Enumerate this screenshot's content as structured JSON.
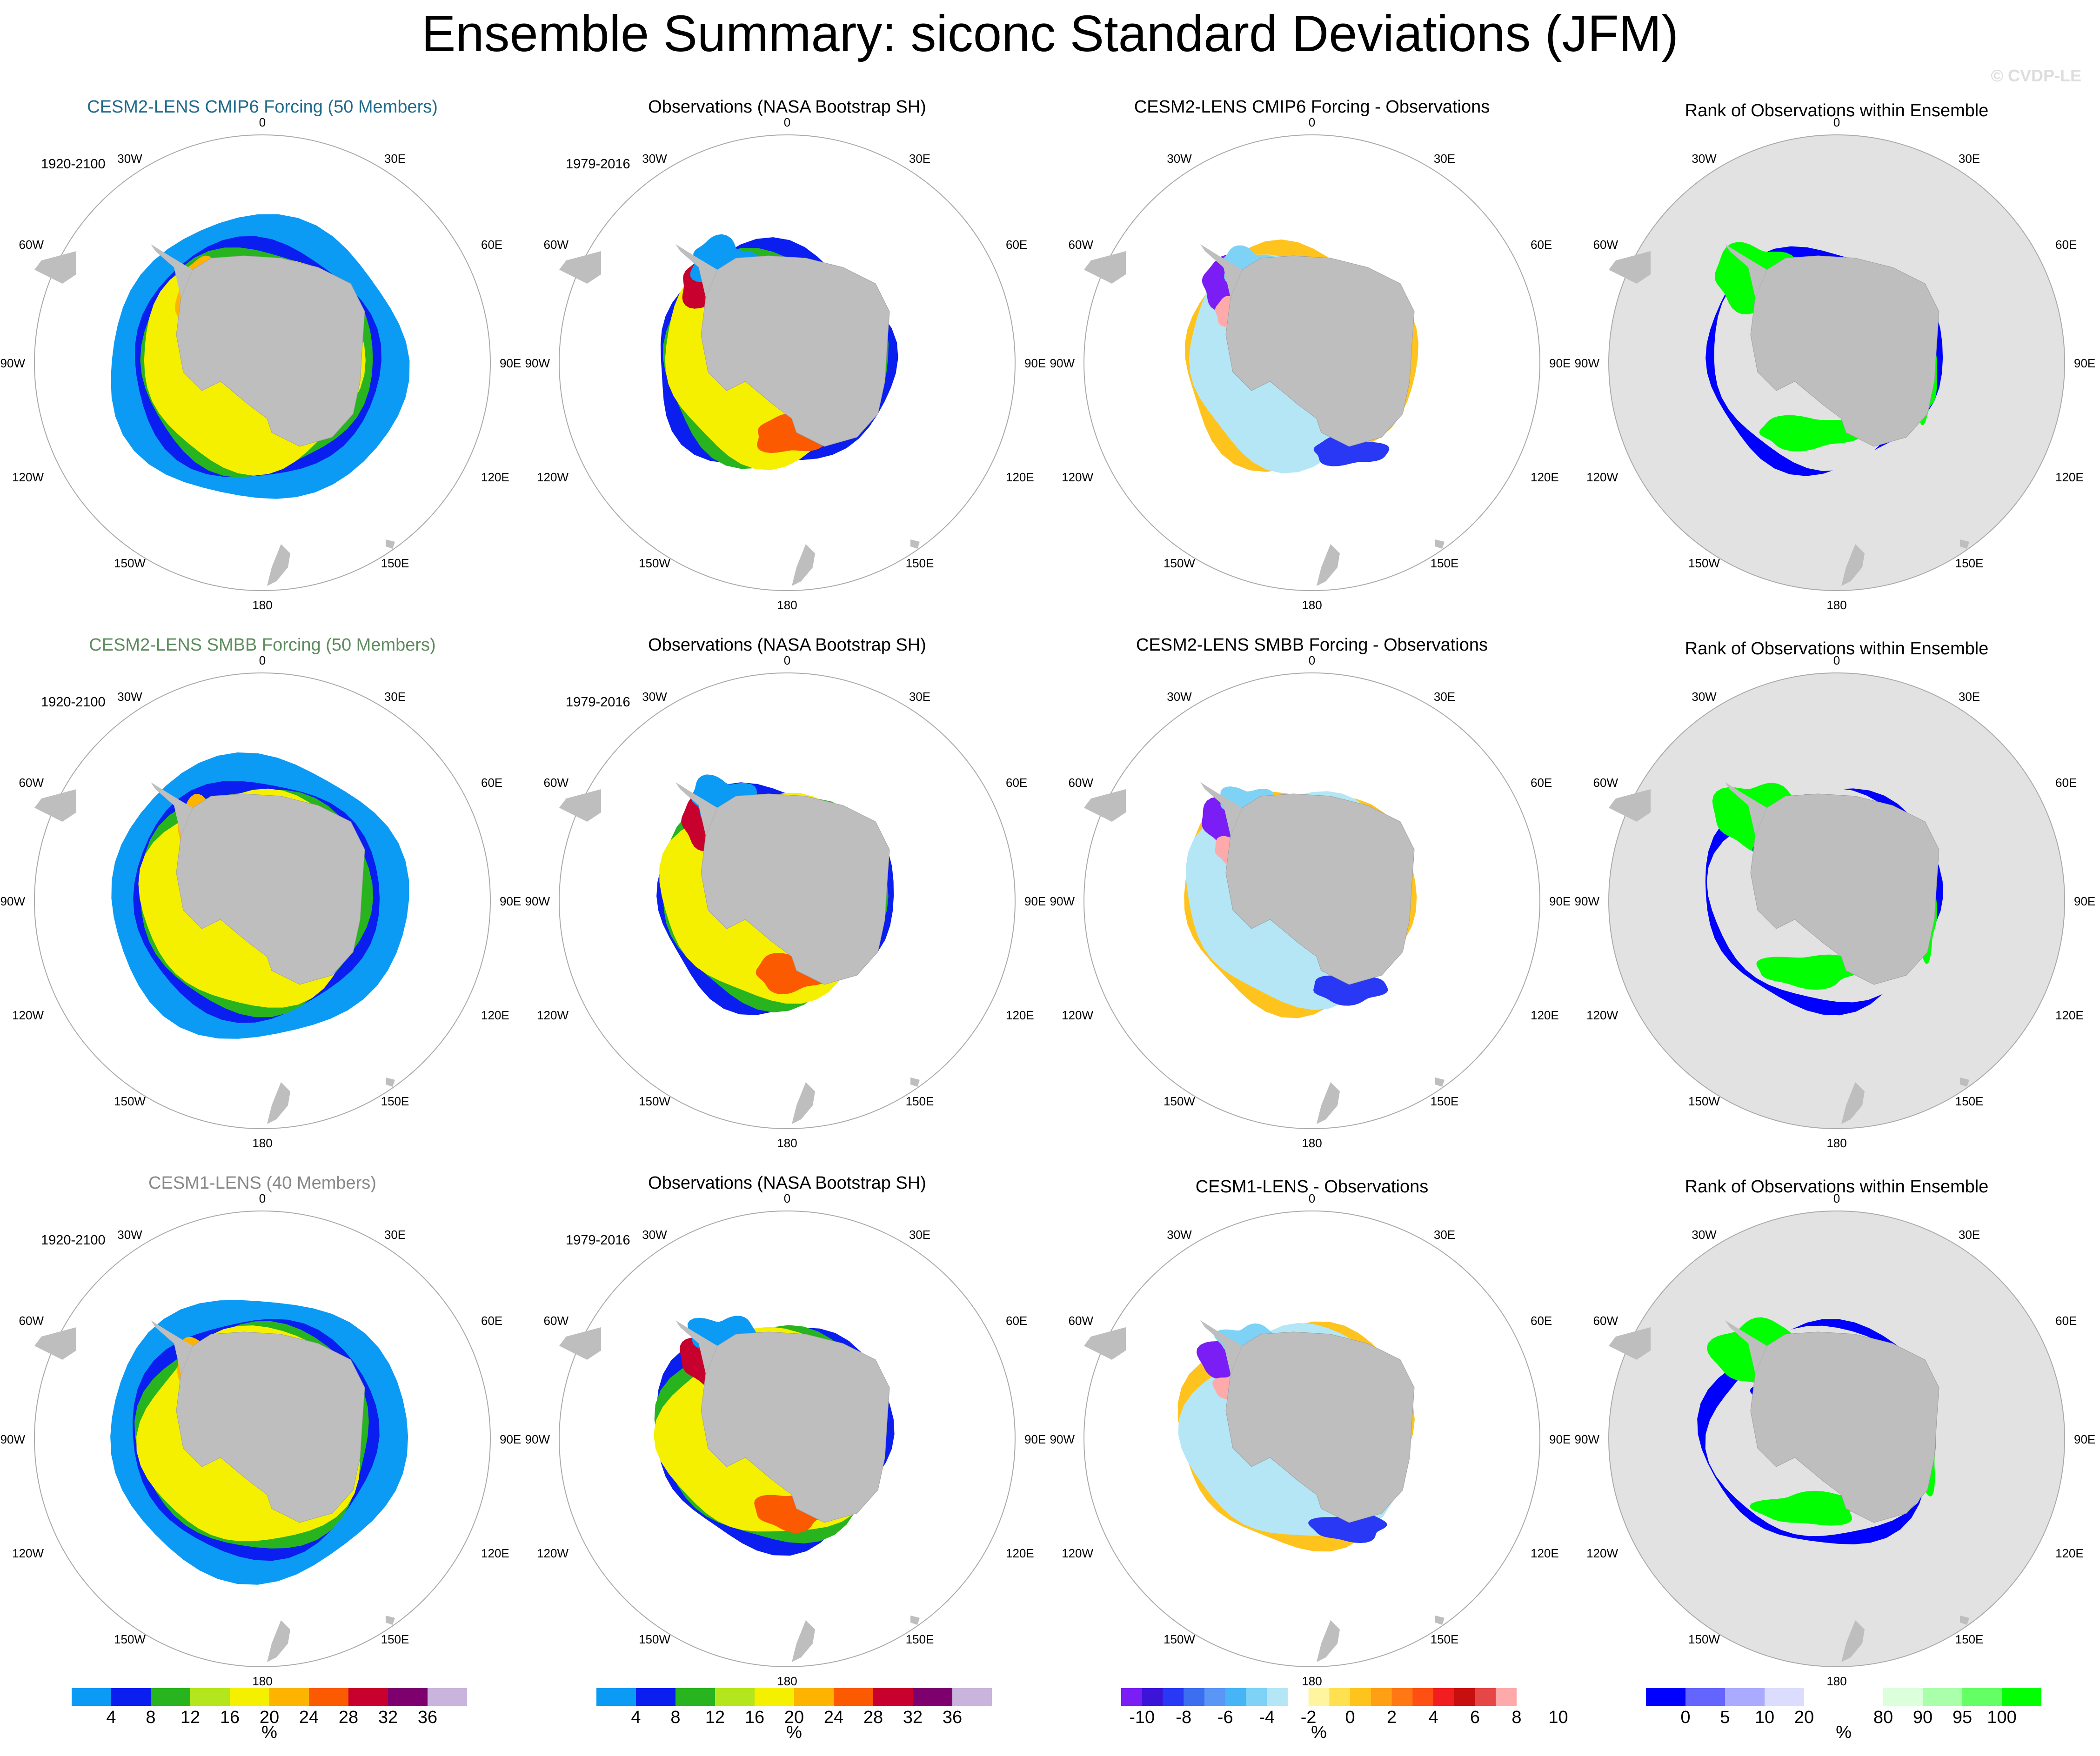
{
  "title": "Ensemble Summary: siconc Standard Deviations (JFM)",
  "watermark": "© CVDP-LE",
  "colors": {
    "land": "#bebebe",
    "ocean": "#ffffff",
    "rank_background": "#e2e2e2",
    "circle": "#aaaaaa",
    "model_title_cmip6": "#1f6b8c",
    "model_title_smbb": "#5d8c5d",
    "model_title_cesm1": "#888888"
  },
  "lon_labels": {
    "top": "0",
    "bottom": "180",
    "upper_left": "30W",
    "upper_right": "30E",
    "mid_upper_left": "60W",
    "mid_upper_right": "60E",
    "mid_left": "90W",
    "mid_right": "90E",
    "mid_lower_left": "120W",
    "mid_lower_right": "120E",
    "lower_left": "150W",
    "lower_right": "150E"
  },
  "rows": [
    {
      "model": {
        "title": "CESM2-LENS CMIP6 Forcing (50 Members)",
        "period": "1920-2100"
      },
      "obs": {
        "title": "Observations (NASA Bootstrap SH)",
        "period": "1979-2016"
      },
      "diff": {
        "title": "CESM2-LENS CMIP6 Forcing - Observations"
      },
      "rank": {
        "title": "Rank of Observations within Ensemble"
      }
    },
    {
      "model": {
        "title": "CESM2-LENS SMBB Forcing (50 Members)",
        "period": "1920-2100"
      },
      "obs": {
        "title": "Observations (NASA Bootstrap SH)",
        "period": "1979-2016"
      },
      "diff": {
        "title": "CESM2-LENS SMBB Forcing - Observations"
      },
      "rank": {
        "title": "Rank of Observations within Ensemble"
      }
    },
    {
      "model": {
        "title": "CESM1-LENS (40 Members)",
        "period": "1920-2100"
      },
      "obs": {
        "title": "Observations (NASA Bootstrap SH)",
        "period": "1979-2016"
      },
      "diff": {
        "title": "CESM1-LENS - Observations"
      },
      "rank": {
        "title": "Rank of Observations within Ensemble"
      }
    }
  ],
  "colorbars": [
    {
      "unit": "%",
      "colors": [
        "#0b9bf5",
        "#0a1ef0",
        "#27b41e",
        "#b4e61e",
        "#f5f000",
        "#fcb400",
        "#fb5a00",
        "#c8002d",
        "#7d006e",
        "#c8b4dc"
      ],
      "labels": [
        "4",
        "8",
        "12",
        "16",
        "20",
        "24",
        "28",
        "32",
        "36"
      ]
    },
    {
      "unit": "%",
      "colors": [
        "#0b9bf5",
        "#0a1ef0",
        "#27b41e",
        "#b4e61e",
        "#f5f000",
        "#fcb400",
        "#fb5a00",
        "#c8002d",
        "#7d006e",
        "#c8b4dc"
      ],
      "labels": [
        "4",
        "8",
        "12",
        "16",
        "20",
        "24",
        "28",
        "32",
        "36"
      ]
    },
    {
      "unit": "%",
      "colors": [
        "#7a1ef5",
        "#3c14d8",
        "#2838f5",
        "#3c6ef0",
        "#5a96f5",
        "#46b4f5",
        "#7dd2f5",
        "#b4e6f5",
        "#ffffff",
        "#fff5a0",
        "#ffe050",
        "#ffc31e",
        "#ffa014",
        "#ff7814",
        "#ff5014",
        "#f01e1e",
        "#c80f0f",
        "#e64646",
        "#ffaaaa"
      ],
      "labels": [
        "-10",
        "-8",
        "-6",
        "-4",
        "-2",
        "0",
        "2",
        "4",
        "6",
        "8",
        "10"
      ]
    },
    {
      "unit": "%",
      "colors": [
        "#0000ff",
        "#6464ff",
        "#aaaaff",
        "#dcdcff",
        "#ffffff",
        "#ffffff",
        "#dcffdc",
        "#aaffaa",
        "#64ff64",
        "#00ff00"
      ],
      "labels": [
        "0",
        "5",
        "10",
        "20",
        "80",
        "90",
        "95",
        "100"
      ]
    }
  ]
}
